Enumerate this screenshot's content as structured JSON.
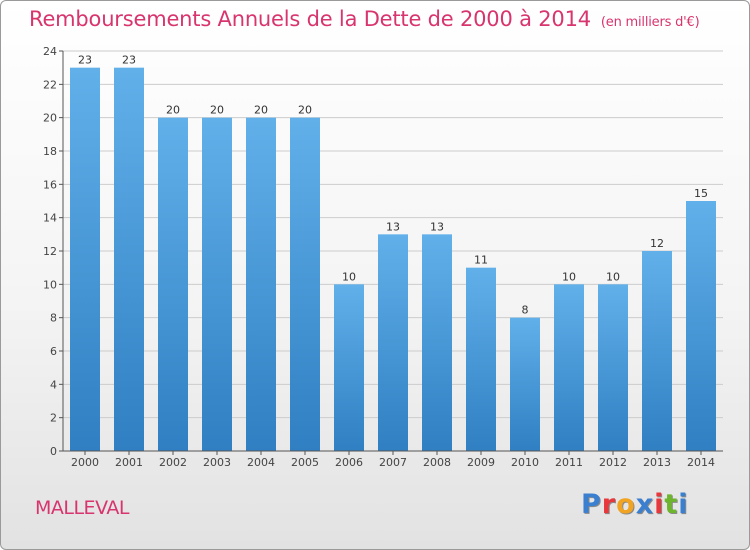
{
  "title": "Remboursements Annuels de la Dette de 2000 à 2014",
  "unit": "(en milliers d'€)",
  "commune": "MALLEVAL",
  "logo": {
    "text": "Proxiti",
    "letters": [
      "P",
      "r",
      "o",
      "x",
      "i",
      "t",
      "i"
    ],
    "colors": [
      "#3a7fd0",
      "#e8383d",
      "#f0a422",
      "#3a7fd0",
      "#e8383d",
      "#6cb52d",
      "#3a7fd0"
    ]
  },
  "colors": {
    "title": "#d8346e",
    "bar_light": "#62b0ea",
    "bar_dark": "#2f7fc2",
    "grid": "#cccccc"
  },
  "chart_data": {
    "type": "bar",
    "title": "Remboursements Annuels de la Dette de 2000 à 2014",
    "ylabel": "en milliers d'€",
    "xlabel": "",
    "categories": [
      "2000",
      "2001",
      "2002",
      "2003",
      "2004",
      "2005",
      "2006",
      "2007",
      "2008",
      "2009",
      "2010",
      "2011",
      "2012",
      "2013",
      "2014"
    ],
    "values": [
      23,
      23,
      20,
      20,
      20,
      20,
      10,
      13,
      13,
      11,
      8,
      10,
      10,
      12,
      15
    ],
    "ylim": [
      0,
      24
    ],
    "yticks": [
      0,
      2,
      4,
      6,
      8,
      10,
      12,
      14,
      16,
      18,
      20,
      22,
      24
    ],
    "grid": true
  }
}
